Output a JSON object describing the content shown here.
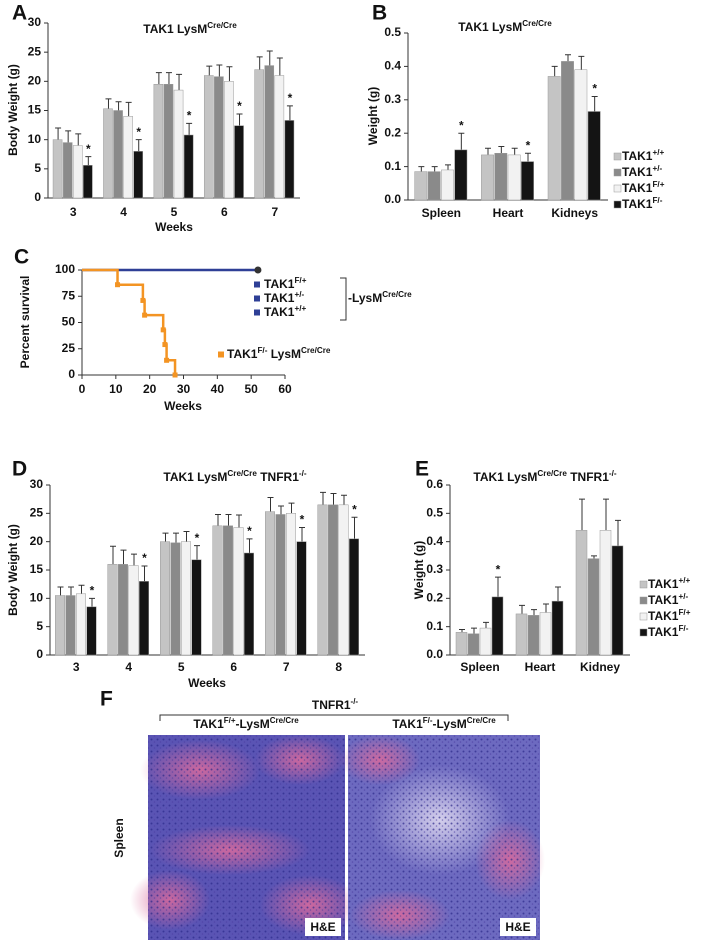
{
  "chart_data": [
    {
      "type": "bar",
      "panel": "A",
      "title": [
        {
          "text": "TAK1 LysM"
        },
        {
          "sup": "Cre/Cre"
        }
      ],
      "ylabel": "Body Weight (g)",
      "xlabel": "Weeks",
      "categories": [
        "3",
        "4",
        "5",
        "6",
        "7"
      ],
      "ylim": [
        0,
        30
      ],
      "yticks": [
        0,
        5,
        10,
        15,
        20,
        25,
        30
      ],
      "series": [
        {
          "color": "#c4c4c4",
          "values": [
            10,
            15.3,
            19.5,
            21,
            22
          ],
          "errors": [
            2,
            1.7,
            2,
            1.6,
            2.2
          ]
        },
        {
          "color": "#8a8a8a",
          "values": [
            9.5,
            15,
            19.5,
            20.8,
            22.7
          ],
          "errors": [
            2,
            1.5,
            2,
            2,
            2.5
          ]
        },
        {
          "color": "#f2f2f2",
          "values": [
            9,
            14,
            18.5,
            20,
            21
          ],
          "errors": [
            2,
            2.4,
            2.7,
            2.5,
            3
          ]
        },
        {
          "color": "#141414",
          "values": [
            5.6,
            8,
            10.8,
            12.4,
            13.3
          ],
          "errors": [
            1.5,
            2,
            2,
            2,
            2.5
          ],
          "annotations": [
            "*",
            "*",
            "*",
            "*",
            "*"
          ]
        }
      ]
    },
    {
      "type": "bar",
      "panel": "B",
      "title": [
        {
          "text": "TAK1 LysM"
        },
        {
          "sup": "Cre/Cre"
        }
      ],
      "ylabel": "Weight (g)",
      "categories": [
        "Spleen",
        "Heart",
        "Kidneys"
      ],
      "ylim": [
        0,
        0.5
      ],
      "yticks": [
        {
          "value": 0,
          "label": "0.0"
        },
        0.1,
        0.2,
        0.3,
        0.4,
        0.5
      ],
      "legend": "right",
      "series": [
        {
          "name": [
            {
              "text": "TAK1"
            },
            {
              "sup": "+/+"
            }
          ],
          "color": "#c4c4c4",
          "values": [
            0.085,
            0.135,
            0.37
          ],
          "errors": [
            0.015,
            0.02,
            0.03
          ]
        },
        {
          "name": [
            {
              "text": "TAK1"
            },
            {
              "sup": "+/-"
            }
          ],
          "color": "#8a8a8a",
          "values": [
            0.085,
            0.14,
            0.415
          ],
          "errors": [
            0.015,
            0.02,
            0.02
          ]
        },
        {
          "name": [
            {
              "text": "TAK1"
            },
            {
              "sup": "F/+"
            }
          ],
          "color": "#f2f2f2",
          "values": [
            0.09,
            0.135,
            0.39
          ],
          "errors": [
            0.015,
            0.02,
            0.04
          ]
        },
        {
          "name": [
            {
              "text": "TAK1"
            },
            {
              "sup": "F/-"
            }
          ],
          "color": "#141414",
          "values": [
            0.15,
            0.115,
            0.265
          ],
          "errors": [
            0.05,
            0.025,
            0.045
          ],
          "annotations": [
            "*",
            "*",
            "*"
          ]
        }
      ]
    },
    {
      "type": "step",
      "panel": "C",
      "ylabel": "Percent survival",
      "xlabel": "Weeks",
      "xlim": [
        0,
        60
      ],
      "xticks": [
        0,
        10,
        20,
        30,
        40,
        50,
        60
      ],
      "ylim": [
        0,
        100
      ],
      "yticks": [
        0,
        25,
        50,
        75,
        100
      ],
      "series": [
        {
          "color": "#2e3f96",
          "x": [
            0,
            52
          ],
          "values": [
            100,
            100
          ],
          "labels": [
            [
              {
                "text": "TAK1"
              },
              {
                "sup": "F/+"
              }
            ],
            [
              {
                "text": "TAK1"
              },
              {
                "sup": "+/-"
              }
            ],
            [
              {
                "text": "TAK1"
              },
              {
                "sup": "+/+"
              }
            ]
          ],
          "group_label": [
            {
              "text": "-LysM"
            },
            {
              "sup": "Cre/Cre"
            }
          ]
        },
        {
          "color": "#f39423",
          "x": [
            0,
            10.5,
            18,
            18.5,
            24,
            24.5,
            25,
            27.5
          ],
          "values": [
            100,
            86,
            71,
            57,
            43,
            29,
            14,
            0
          ],
          "name": [
            {
              "text": "TAK1"
            },
            {
              "sup": "F/-"
            },
            {
              "text": " LysM"
            },
            {
              "sup": "Cre/Cre"
            }
          ]
        }
      ]
    },
    {
      "type": "bar",
      "panel": "D",
      "title": [
        {
          "text": "TAK1 LysM"
        },
        {
          "sup": "Cre/Cre"
        },
        {
          "text": " TNFR1"
        },
        {
          "sup": "-/-"
        }
      ],
      "ylabel": "Body Weight (g)",
      "xlabel": "Weeks",
      "categories": [
        "3",
        "4",
        "5",
        "6",
        "7",
        "8"
      ],
      "ylim": [
        0,
        30
      ],
      "yticks": [
        0,
        5,
        10,
        15,
        20,
        25,
        30
      ],
      "series": [
        {
          "color": "#c4c4c4",
          "values": [
            10.5,
            16,
            20,
            22.8,
            25.3,
            26.5
          ],
          "errors": [
            1.5,
            3.2,
            1.5,
            2,
            2.5,
            2.2
          ]
        },
        {
          "color": "#8a8a8a",
          "values": [
            10.5,
            16,
            19.8,
            22.8,
            24.8,
            26.5
          ],
          "errors": [
            1.5,
            2.5,
            1.7,
            2,
            1.5,
            2
          ]
        },
        {
          "color": "#f2f2f2",
          "values": [
            10.8,
            15.8,
            20,
            22.5,
            25,
            26.5
          ],
          "errors": [
            1.5,
            2,
            1.8,
            2.2,
            1.8,
            1.7
          ]
        },
        {
          "color": "#141414",
          "values": [
            8.5,
            13,
            16.8,
            18,
            20,
            20.5
          ],
          "errors": [
            1.5,
            2.7,
            2.5,
            2.5,
            2.5,
            3.8
          ],
          "annotations": [
            "*",
            "*",
            "*",
            "*",
            "*",
            "*"
          ]
        }
      ]
    },
    {
      "type": "bar",
      "panel": "E",
      "title": [
        {
          "text": "TAK1 LysM"
        },
        {
          "sup": "Cre/Cre"
        },
        {
          "text": " TNFR1"
        },
        {
          "sup": "-/-"
        }
      ],
      "ylabel": "Weight (g)",
      "categories": [
        "Spleen",
        "Heart",
        "Kidney"
      ],
      "ylim": [
        0,
        0.6
      ],
      "yticks": [
        {
          "value": 0,
          "label": "0.0"
        },
        0.1,
        0.2,
        0.3,
        0.4,
        0.5,
        0.6
      ],
      "legend": "right",
      "series": [
        {
          "name": [
            {
              "text": "TAK1"
            },
            {
              "sup": "+/+"
            }
          ],
          "color": "#c4c4c4",
          "values": [
            0.08,
            0.145,
            0.44
          ],
          "errors": [
            0.01,
            0.03,
            0.11
          ]
        },
        {
          "name": [
            {
              "text": "TAK1"
            },
            {
              "sup": "+/-"
            }
          ],
          "color": "#8a8a8a",
          "values": [
            0.075,
            0.14,
            0.34
          ],
          "errors": [
            0.02,
            0.02,
            0.01
          ]
        },
        {
          "name": [
            {
              "text": "TAK1"
            },
            {
              "sup": "F/+"
            }
          ],
          "color": "#f2f2f2",
          "values": [
            0.095,
            0.15,
            0.44
          ],
          "errors": [
            0.02,
            0.03,
            0.11
          ]
        },
        {
          "name": [
            {
              "text": "TAK1"
            },
            {
              "sup": "F/-"
            }
          ],
          "color": "#141414",
          "values": [
            0.205,
            0.19,
            0.385
          ],
          "errors": [
            0.07,
            0.05,
            0.09
          ],
          "annotations": [
            "*",
            null,
            null
          ]
        }
      ]
    }
  ],
  "panel_f": {
    "letter": "F",
    "group": [
      {
        "text": "TNFR1"
      },
      {
        "sup": "-/-"
      }
    ],
    "row_label": "Spleen",
    "images": [
      {
        "caption": [
          {
            "text": "TAK1"
          },
          {
            "sup": "F/+"
          },
          {
            "text": "-LysM"
          },
          {
            "sup": "Cre/Cre"
          }
        ],
        "stain": "H&E"
      },
      {
        "caption": [
          {
            "text": "TAK1"
          },
          {
            "sup": "F/-"
          },
          {
            "text": "-LysM"
          },
          {
            "sup": "Cre/Cre"
          }
        ],
        "stain": "H&E"
      }
    ]
  }
}
